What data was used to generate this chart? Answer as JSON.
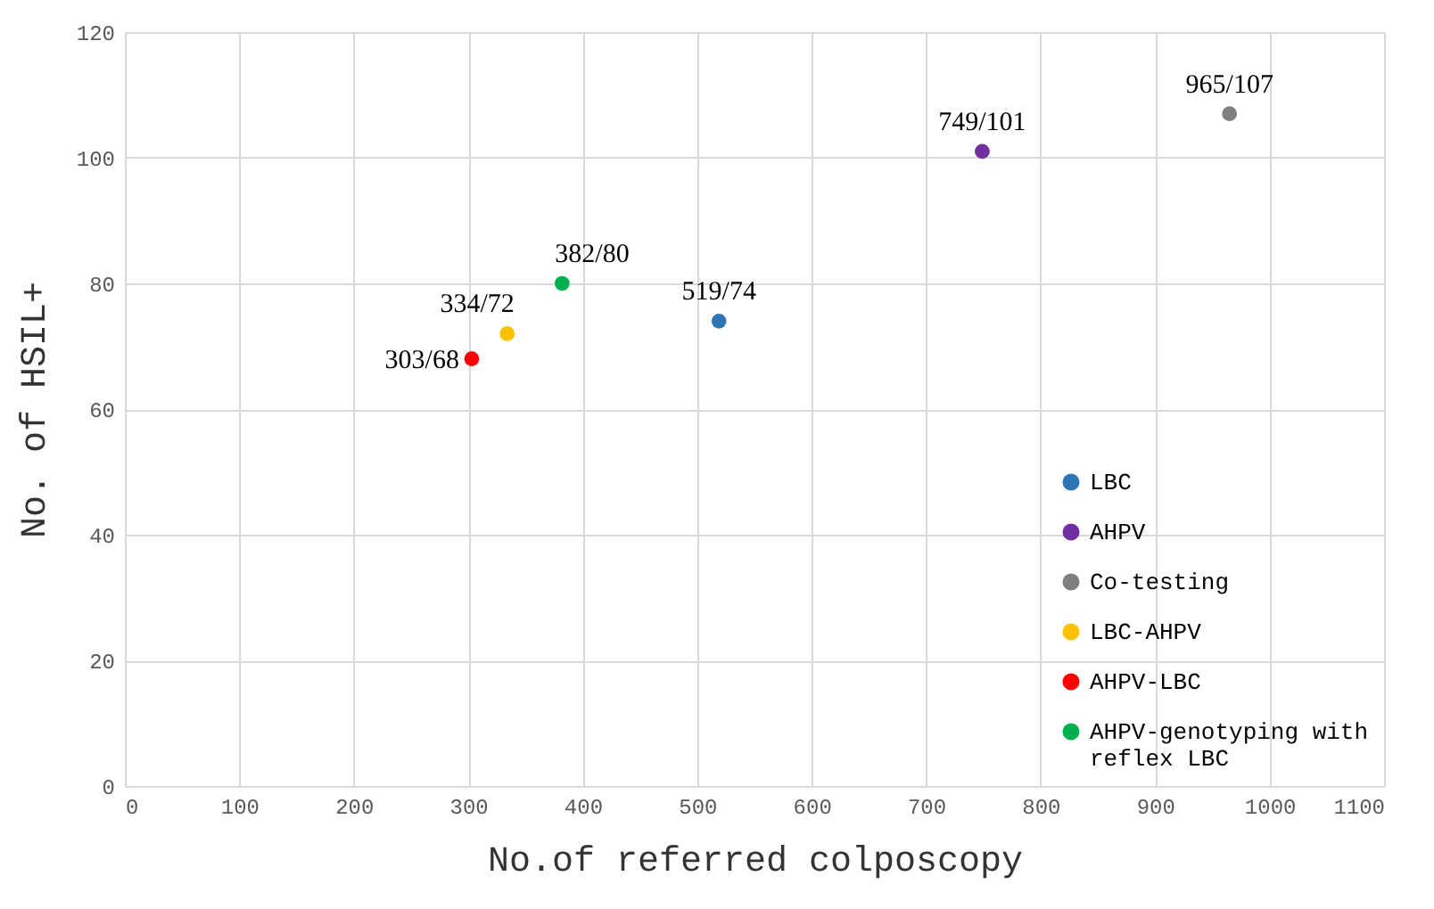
{
  "chart_data": {
    "type": "scatter",
    "xlabel": "No.of referred colposcopy",
    "ylabel": "No. of HSIL+",
    "xlim": [
      0,
      1100
    ],
    "xticks": [
      0,
      100,
      200,
      300,
      400,
      500,
      600,
      700,
      800,
      900,
      1000,
      1100
    ],
    "ylim": [
      0,
      120
    ],
    "yticks": [
      0,
      20,
      40,
      60,
      80,
      100,
      120
    ],
    "grid": true,
    "legend": "bottom right",
    "marker": "circle",
    "series": [
      {
        "name": "LBC",
        "color": "#2e75b6",
        "x": [
          519
        ],
        "values": [
          74
        ]
      },
      {
        "name": "AHPV",
        "color": "#7030a0",
        "x": [
          749
        ],
        "values": [
          101
        ]
      },
      {
        "name": "Co-testing",
        "color": "#7f7f7f",
        "x": [
          965
        ],
        "values": [
          107
        ]
      },
      {
        "name": "LBC-AHPV",
        "color": "#ffc000",
        "x": [
          334
        ],
        "values": [
          72
        ]
      },
      {
        "name": "AHPV-LBC",
        "color": "#ff0000",
        "x": [
          303
        ],
        "values": [
          68
        ]
      },
      {
        "name": "AHPV-genotyping with reflex LBC",
        "color": "#00b050",
        "x": [
          382
        ],
        "values": [
          80
        ]
      }
    ],
    "annotations": [
      {
        "text": "519/74",
        "x": 519,
        "y": 74
      },
      {
        "text": "749/101",
        "x": 749,
        "y": 101
      },
      {
        "text": "965/107",
        "x": 965,
        "y": 107
      },
      {
        "text": "334/72",
        "x": 334,
        "y": 72
      },
      {
        "text": "303/68",
        "x": 303,
        "y": 68
      },
      {
        "text": "382/80",
        "x": 382,
        "y": 80
      }
    ]
  }
}
